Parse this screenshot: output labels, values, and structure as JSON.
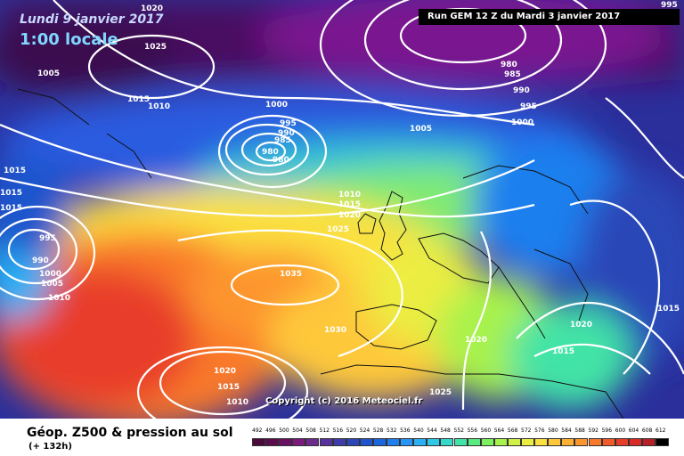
{
  "header": {
    "date": "Lundi 9 janvier 2017",
    "time": "1:00 locale",
    "run": "Run GEM 12 Z du Mardi 3 janvier 2017"
  },
  "map": {
    "copyright": "Copyright (c) 2016 Meteociel.fr",
    "isobar_labels": [
      "1020",
      "1025",
      "1005",
      "1015",
      "1010",
      "1000",
      "995",
      "990",
      "985",
      "980",
      "980",
      "1005",
      "1015",
      "1015",
      "1015",
      "995",
      "990",
      "1000",
      "1005",
      "1010",
      "1035",
      "1010",
      "1015",
      "1020",
      "1025",
      "1030",
      "1020",
      "1015",
      "1010",
      "1025",
      "1020",
      "1020",
      "1015",
      "1015",
      "980",
      "985",
      "990",
      "995",
      "1000",
      "995"
    ]
  },
  "footer": {
    "title": "Géop. Z500 & pression au sol",
    "subtitle": "(+ 132h)"
  },
  "legend": {
    "values": [
      "492",
      "496",
      "500",
      "504",
      "508",
      "512",
      "516",
      "520",
      "524",
      "528",
      "532",
      "536",
      "540",
      "544",
      "548",
      "552",
      "556",
      "560",
      "564",
      "568",
      "572",
      "576",
      "580",
      "584",
      "588",
      "592",
      "596",
      "600",
      "604",
      "608",
      "612"
    ],
    "colors": [
      "#4b0a3c",
      "#5a0c4d",
      "#6a0f62",
      "#7a1a7a",
      "#6b2a8c",
      "#58329c",
      "#3e3ca8",
      "#2c46b8",
      "#1f55cc",
      "#1c66dd",
      "#1f7fee",
      "#2596f6",
      "#2cb0f5",
      "#2fc8e6",
      "#35d9c9",
      "#42e3a6",
      "#58eb80",
      "#7df05f",
      "#a8f24c",
      "#d0f145",
      "#eced43",
      "#fbe040",
      "#fec83a",
      "#feb034",
      "#fd952f",
      "#f9792c",
      "#f25a2a",
      "#e83e29",
      "#d92a28",
      "#b81f26",
      "#000000"
    ]
  }
}
